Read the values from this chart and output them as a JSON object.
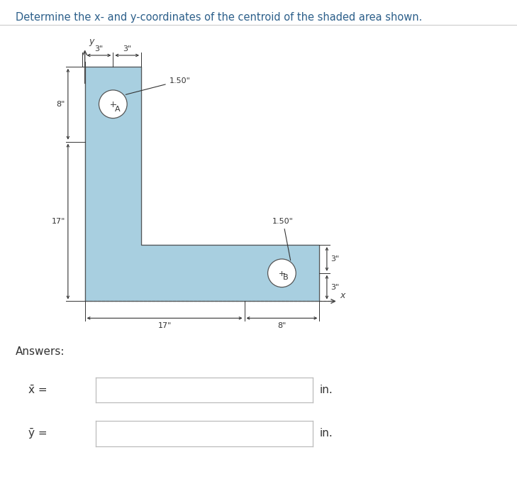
{
  "title": "Determine the x- and y-coordinates of the centroid of the shaded area shown.",
  "title_color": "#2c5f8a",
  "background_color": "#f5f5f5",
  "shape_fill": "#a8cfe0",
  "shape_edge": "#555555",
  "dim_color": "#333333",
  "axis_color": "#444444",
  "circle_fill": "#ffffff",
  "circle_edge": "#555555",
  "answer_box_fill": "#2196f3",
  "answer_box_text": "#ffffff",
  "answers_label": "Answers:",
  "xbar_label": "x̄ =",
  "ybar_label": "ȳ =",
  "units": "in.",
  "dim_8": "8\"",
  "dim_17_left": "17\"",
  "dim_17_bottom": "17\"",
  "dim_8_bottom": "8\"",
  "dim_3a": "3\"",
  "dim_3b": "3\"",
  "dim_3c": "3\"",
  "dim_3d": "3\"",
  "dim_150a": "1.50\"",
  "dim_150b": "1.50\"",
  "circle_A_label": "A",
  "circle_B_label": "B",
  "x_axis_label": "x",
  "y_axis_label": "y"
}
